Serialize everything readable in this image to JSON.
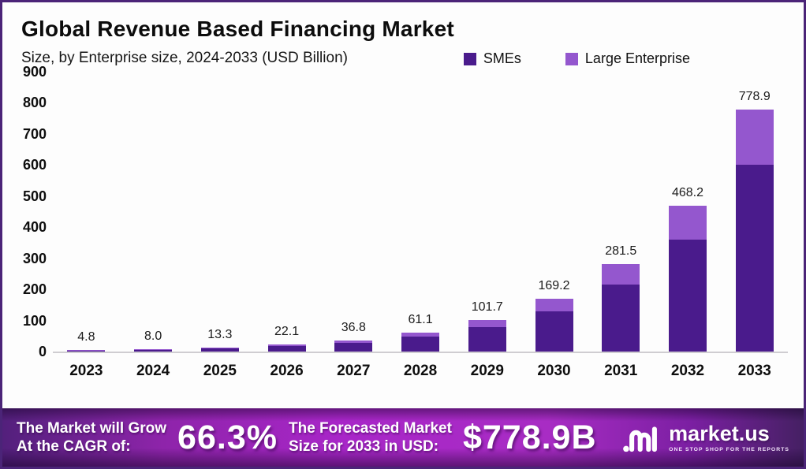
{
  "header": {
    "title": "Global Revenue Based Financing Market",
    "subtitle": "Size, by Enterprise size, 2024-2033 (USD Billion)"
  },
  "legend": [
    {
      "label": "SMEs",
      "color": "#4a1b8c"
    },
    {
      "label": "Large Enterprise",
      "color": "#9457ce"
    }
  ],
  "chart_data": {
    "type": "bar",
    "stacked": true,
    "title": "Global Revenue Based Financing Market",
    "subtitle": "Size, by Enterprise size, 2024-2033 (USD Billion)",
    "ylabel": "USD Billion",
    "ylim": [
      0,
      900
    ],
    "yticks": [
      0,
      100,
      200,
      300,
      400,
      500,
      600,
      700,
      800,
      900
    ],
    "grid": false,
    "legend_position": "top-right",
    "categories": [
      "2023",
      "2024",
      "2025",
      "2026",
      "2027",
      "2028",
      "2029",
      "2030",
      "2031",
      "2032",
      "2033"
    ],
    "totals": [
      4.8,
      8.0,
      13.3,
      22.1,
      36.8,
      61.1,
      101.7,
      169.2,
      281.5,
      468.2,
      778.9
    ],
    "labels": [
      "4.8",
      "8.0",
      "13.3",
      "22.1",
      "36.8",
      "61.1",
      "101.7",
      "169.2",
      "281.5",
      "468.2",
      "778.9"
    ],
    "series": [
      {
        "name": "SMEs",
        "color": "#4a1b8c",
        "values": [
          3.7,
          6.2,
          10.2,
          17.0,
          28.3,
          47.0,
          78.3,
          130.3,
          216.8,
          360.5,
          599.8
        ]
      },
      {
        "name": "Large Enterprise",
        "color": "#9457ce",
        "values": [
          1.1,
          1.8,
          3.1,
          5.1,
          8.5,
          14.1,
          23.4,
          38.9,
          64.7,
          107.7,
          179.1
        ]
      }
    ]
  },
  "banner": {
    "cagr_label_line1": "The Market will Grow",
    "cagr_label_line2": "At the CAGR of:",
    "cagr_value": "66.3%",
    "forecast_label_line1": "The Forecasted Market",
    "forecast_label_line2": "Size for 2033 in USD:",
    "forecast_value": "$778.9B",
    "logo_text": "market.us",
    "logo_tagline": "ONE STOP SHOP FOR THE REPORTS"
  }
}
